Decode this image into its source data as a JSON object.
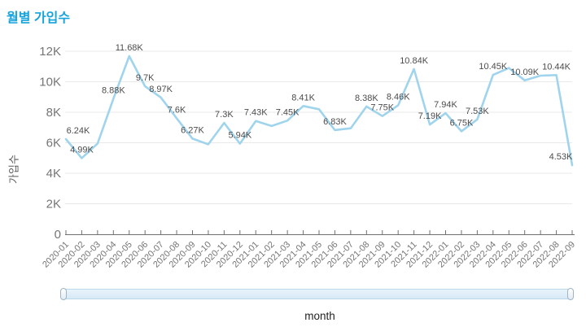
{
  "title": "월별 가입수",
  "chart_data": {
    "type": "line",
    "title": "월별 가입수",
    "xlabel": "month",
    "ylabel": "가입수",
    "x": [
      "2020-01",
      "2020-02",
      "2020-03",
      "2020-04",
      "2020-05",
      "2020-06",
      "2020-07",
      "2020-08",
      "2020-09",
      "2020-10",
      "2020-11",
      "2020-12",
      "2021-01",
      "2021-02",
      "2021-03",
      "2021-04",
      "2021-05",
      "2021-06",
      "2021-07",
      "2021-08",
      "2021-09",
      "2021-10",
      "2021-11",
      "2021-12",
      "2022-01",
      "2022-02",
      "2022-03",
      "2022-04",
      "2022-05",
      "2022-06",
      "2022-07",
      "2022-08",
      "2022-09"
    ],
    "series": [
      {
        "name": "가입수",
        "values": [
          6.24,
          4.99,
          5.95,
          8.88,
          11.68,
          9.7,
          8.97,
          7.6,
          6.27,
          5.9,
          7.3,
          5.94,
          7.43,
          7.1,
          7.45,
          8.41,
          8.2,
          6.83,
          6.95,
          8.38,
          7.75,
          8.46,
          10.84,
          7.19,
          7.94,
          6.75,
          7.53,
          10.45,
          10.9,
          10.09,
          10.4,
          10.44,
          4.53
        ]
      }
    ],
    "point_labels": [
      "6.24K",
      "4.99K",
      "",
      "8.88K",
      "11.68K",
      "9.7K",
      "8.97K",
      "7.6K",
      "6.27K",
      "",
      "7.3K",
      "5.94K",
      "7.43K",
      "",
      "7.45K",
      "8.41K",
      "",
      "6.83K",
      "",
      "8.38K",
      "7.75K",
      "8.46K",
      "10.84K",
      "7.19K",
      "7.94K",
      "6.75K",
      "7.53K",
      "10.45K",
      "",
      "10.09K",
      "",
      "10.44K",
      "4.53K"
    ],
    "y_ticks": [
      "0",
      "2K",
      "4K",
      "6K",
      "8K",
      "10K",
      "12K"
    ],
    "ylim": [
      0,
      12600
    ],
    "grid": "horizontal",
    "legend": "none",
    "style": {
      "title_color": "#17a4dc",
      "line_color": "#a0d4ed",
      "grid_color": "#e9e9e9",
      "axis_line_color": "#707070",
      "axis_text_color": "#757575",
      "label_color": "#4c4c4c",
      "slider_fill": "#d7e9f6",
      "slider_border": "#bcd7ea"
    }
  }
}
